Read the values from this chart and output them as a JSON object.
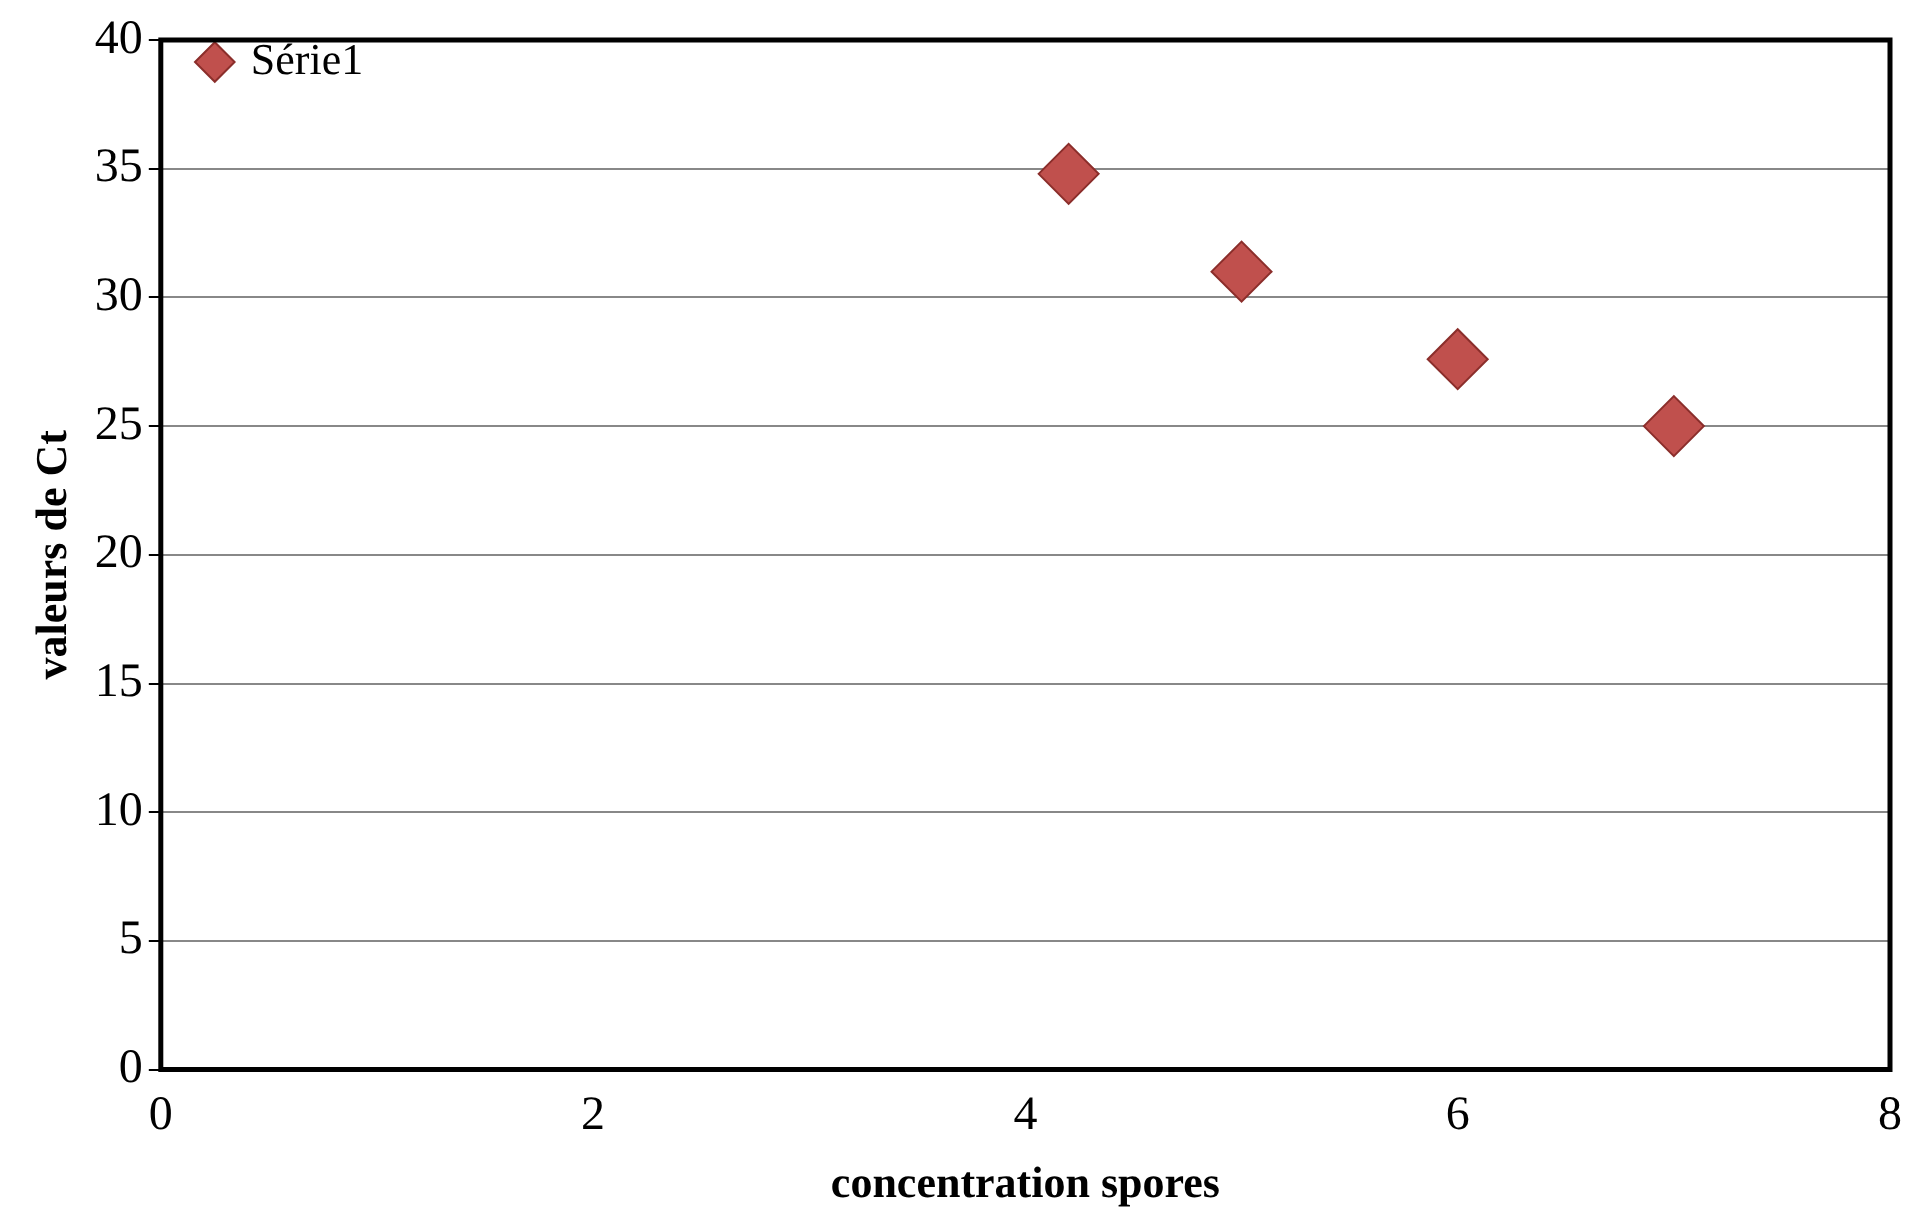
{
  "chart_data": {
    "type": "scatter",
    "xlabel": "concentration spores",
    "ylabel": "valeurs de Ct",
    "x": [
      4.2,
      5,
      6,
      7
    ],
    "series": [
      {
        "name": "Série1",
        "color": "#c0504d",
        "values": [
          34.8,
          31.0,
          27.6,
          25.0
        ]
      }
    ],
    "xlim": [
      0,
      8
    ],
    "xticks": [
      0,
      2,
      4,
      6,
      8
    ],
    "ylim": [
      0,
      40
    ],
    "yticks": [
      0,
      5,
      10,
      15,
      20,
      25,
      30,
      35,
      40
    ],
    "grid": "y",
    "legend": "top left",
    "marker": "diamond"
  }
}
